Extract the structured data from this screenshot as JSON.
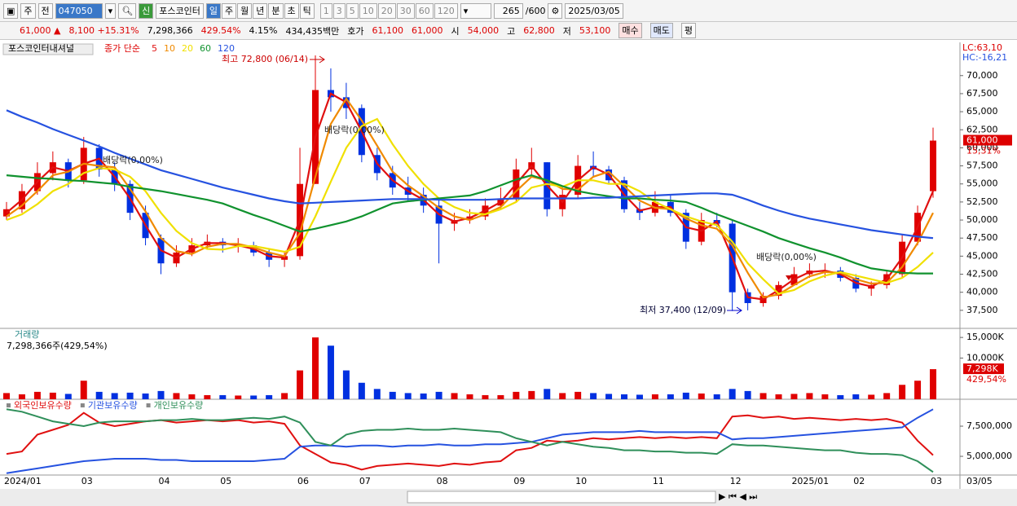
{
  "toolbar": {
    "period": "주",
    "prev": "전",
    "code": "047050",
    "badge": "신",
    "name": "포스코인터",
    "intervals": [
      "일",
      "주",
      "월",
      "년",
      "분",
      "초",
      "틱"
    ],
    "counts": [
      "1",
      "3",
      "5",
      "10",
      "20",
      "30",
      "60",
      "120"
    ],
    "count": "265",
    "count_max": "/600",
    "date": "2025/03/05"
  },
  "quote_bar": {
    "price": "61,000 ▲",
    "change": "8,100 +15.31%",
    "volume": "7,298,366",
    "volume_ratio": "429.54%",
    "turnover": "4.15%",
    "amount": "434,435백만",
    "ask_label": "호가",
    "ask": "61,100",
    "bid": "61,000",
    "open_label": "시",
    "open": "54,000",
    "high_label": "고",
    "high": "62,800",
    "low_label": "저",
    "low": "53,100",
    "buy": "매수",
    "sell": "매도",
    "avg": "평"
  },
  "chart_data": [
    {
      "type": "candlestick",
      "legend_title": "포스코인터내셔널",
      "legend_label": "종가 단순",
      "up_color": "#e00000",
      "down_color": "#0030e0",
      "categories": [
        "2024/01",
        null,
        null,
        null,
        null,
        "03",
        null,
        null,
        null,
        null,
        "04",
        null,
        null,
        null,
        "05",
        null,
        null,
        null,
        null,
        "06",
        null,
        null,
        null,
        "07",
        null,
        null,
        null,
        null,
        "08",
        null,
        null,
        null,
        null,
        "09",
        null,
        null,
        null,
        "10",
        null,
        null,
        null,
        null,
        "11",
        null,
        null,
        null,
        null,
        "12",
        null,
        null,
        null,
        "2025/01",
        null,
        null,
        null,
        "02",
        null,
        null,
        null,
        null,
        "03"
      ],
      "open": [
        50500,
        51500,
        54000,
        56500,
        58000,
        55500,
        60000,
        57000,
        55000,
        51000,
        47500,
        44000,
        45500,
        46500,
        47000,
        46500,
        46500,
        45500,
        44500,
        45000,
        55000,
        68000,
        67000,
        65500,
        59000,
        56500,
        54500,
        53500,
        52000,
        49500,
        50000,
        50500,
        52000,
        53000,
        57000,
        58000,
        51500,
        53500,
        57500,
        57000,
        55500,
        51500,
        51000,
        52500,
        51000,
        47000,
        50000,
        49500,
        40000,
        38500,
        39500,
        41000,
        42500,
        43000,
        43000,
        42000,
        40500,
        41000,
        42500,
        47000,
        54000
      ],
      "high": [
        52500,
        55000,
        58000,
        59500,
        58500,
        61500,
        60500,
        58000,
        55500,
        52000,
        48000,
        46500,
        47500,
        48000,
        47500,
        47500,
        47000,
        46000,
        45500,
        60000,
        72800,
        71000,
        69000,
        66000,
        60000,
        57500,
        56000,
        54500,
        53000,
        51000,
        51500,
        53000,
        54500,
        58500,
        60000,
        58000,
        54500,
        59000,
        59500,
        57500,
        56000,
        52500,
        54000,
        53500,
        51500,
        51000,
        51000,
        50000,
        40500,
        40000,
        41500,
        43500,
        44000,
        44000,
        43500,
        42500,
        41500,
        43000,
        48000,
        52000,
        62800
      ],
      "low": [
        50000,
        51000,
        53500,
        55500,
        54500,
        55000,
        56000,
        54000,
        50000,
        46500,
        42500,
        43500,
        45000,
        46000,
        45500,
        45500,
        45000,
        43500,
        43500,
        44500,
        55000,
        65000,
        64000,
        58000,
        55500,
        53500,
        52500,
        51000,
        44000,
        48500,
        49500,
        50000,
        51500,
        52500,
        56000,
        50500,
        50500,
        53000,
        56000,
        55000,
        51000,
        50000,
        50500,
        50500,
        46000,
        46500,
        49000,
        37400,
        37500,
        38000,
        39000,
        41000,
        42000,
        42000,
        41500,
        40000,
        39500,
        40500,
        42000,
        46500,
        53100
      ],
      "close": [
        51500,
        54000,
        56500,
        58000,
        55500,
        60000,
        57000,
        55000,
        51000,
        47500,
        44000,
        45500,
        46500,
        47000,
        46500,
        46500,
        45500,
        44500,
        45000,
        55000,
        68000,
        67000,
        65500,
        59000,
        56500,
        54500,
        53500,
        52000,
        49500,
        50000,
        50500,
        52000,
        53000,
        57000,
        58000,
        51500,
        53500,
        57500,
        57000,
        55500,
        51500,
        51000,
        52500,
        51000,
        47000,
        50000,
        49500,
        40000,
        38500,
        39500,
        41000,
        42500,
        43000,
        43000,
        42000,
        40500,
        41000,
        42500,
        47000,
        51000,
        61000
      ],
      "series": [
        {
          "name": "5",
          "color": "#e01010",
          "values": [
            51000,
            52800,
            55300,
            57300,
            56800,
            57800,
            58500,
            56000,
            53000,
            49300,
            45800,
            44800,
            46000,
            46800,
            46800,
            46500,
            46000,
            45000,
            44800,
            50000,
            61500,
            67500,
            66300,
            62300,
            57800,
            55500,
            54000,
            52800,
            50800,
            49800,
            50300,
            51300,
            52500,
            55000,
            57500,
            54800,
            52500,
            55500,
            57300,
            56300,
            53500,
            51300,
            51800,
            51800,
            49000,
            48500,
            49800,
            44800,
            39300,
            39000,
            40300,
            41800,
            42800,
            43000,
            42500,
            41300,
            40800,
            41800,
            44800,
            49000,
            54000
          ]
        },
        {
          "name": "10",
          "color": "#f08a00",
          "values": [
            50500,
            52000,
            54000,
            56200,
            56700,
            57800,
            57500,
            57300,
            54300,
            51200,
            47500,
            45700,
            45300,
            46300,
            46700,
            46700,
            46200,
            45500,
            45000,
            48200,
            56000,
            63300,
            66800,
            63800,
            60300,
            56700,
            54800,
            53300,
            51700,
            50500,
            50000,
            50800,
            51800,
            54000,
            56000,
            55500,
            54300,
            54200,
            56000,
            56700,
            54700,
            52700,
            51700,
            51500,
            50200,
            49300,
            48800,
            46500,
            42700,
            39300,
            39700,
            41000,
            42200,
            42800,
            42700,
            41800,
            41200,
            41300,
            43500,
            46800,
            51000
          ]
        },
        {
          "name": "20",
          "color": "#f0e000",
          "values": [
            50000,
            50800,
            52200,
            54000,
            55000,
            56500,
            57200,
            57000,
            56000,
            54000,
            51000,
            48500,
            46800,
            46000,
            45900,
            46400,
            46400,
            46000,
            45600,
            46300,
            50500,
            55300,
            60000,
            63000,
            64000,
            60500,
            57500,
            55000,
            53000,
            51800,
            51000,
            50800,
            51500,
            52500,
            54500,
            55000,
            54600,
            55500,
            55500,
            55000,
            55000,
            54000,
            52500,
            51500,
            50500,
            49800,
            49300,
            47000,
            44000,
            41800,
            39800,
            40300,
            41500,
            42300,
            42800,
            42300,
            41800,
            41300,
            42000,
            43500,
            45500
          ]
        },
        {
          "name": "60",
          "color": "#10922e",
          "values": [
            56200,
            56000,
            55800,
            55700,
            55500,
            55400,
            55200,
            55000,
            54600,
            54300,
            54000,
            53600,
            53200,
            52800,
            52300,
            51500,
            50700,
            50000,
            49200,
            48400,
            48800,
            49300,
            49800,
            50500,
            51400,
            52300,
            52600,
            52800,
            53000,
            53200,
            53400,
            54000,
            54800,
            55600,
            56200,
            55500,
            54700,
            54000,
            53600,
            53300,
            53000,
            53000,
            52800,
            52700,
            52500,
            51700,
            50800,
            50000,
            49200,
            48400,
            47500,
            46800,
            46100,
            45500,
            44800,
            44000,
            43300,
            43000,
            42700,
            42600,
            42600
          ]
        },
        {
          "name": "120",
          "color": "#2652e0",
          "values": [
            65200,
            64300,
            63500,
            62600,
            61800,
            61000,
            60200,
            59300,
            58500,
            57700,
            56900,
            56300,
            55700,
            55100,
            54500,
            54000,
            53500,
            53000,
            52600,
            52300,
            52400,
            52500,
            52600,
            52700,
            52800,
            52900,
            52900,
            52900,
            52800,
            52800,
            52800,
            52800,
            52900,
            53000,
            53000,
            53000,
            53000,
            53000,
            53100,
            53100,
            53200,
            53300,
            53400,
            53500,
            53600,
            53700,
            53700,
            53500,
            52800,
            52000,
            51300,
            50700,
            50200,
            49800,
            49400,
            49000,
            48600,
            48300,
            48000,
            47700,
            47500
          ]
        }
      ],
      "annotations": [
        "최고 72,800 (06/14)",
        "최저 37,400 (12/09)",
        "배당락(0,00%)",
        "배당락(0,00%)",
        "배당락(0,00%)"
      ],
      "lc_label": "LC:63,10",
      "hc_label": "HC:-16,21",
      "last_label": "61,000",
      "last_change_label": "15,31%",
      "ylim": [
        35000,
        74600
      ],
      "yticks": [
        {
          "value": 37500,
          "label": "37,500"
        },
        {
          "value": 40000,
          "label": "40,000"
        },
        {
          "value": 42500,
          "label": "42,500"
        },
        {
          "value": 45000,
          "label": "45,000"
        },
        {
          "value": 47500,
          "label": "47,500"
        },
        {
          "value": 50000,
          "label": "50,000"
        },
        {
          "value": 52500,
          "label": "52,500"
        },
        {
          "value": 55000,
          "label": "55,000"
        },
        {
          "value": 57500,
          "label": "57,500"
        },
        {
          "value": 60000,
          "label": "60,000"
        },
        {
          "value": 62500,
          "label": "62,500"
        },
        {
          "value": 65000,
          "label": "65,000"
        },
        {
          "value": 67500,
          "label": "67,500"
        },
        {
          "value": 70000,
          "label": "70,000"
        }
      ],
      "date_label": "03/05"
    },
    {
      "type": "bar",
      "title": "거래량",
      "subtitle": "7,298,366주(429,54%)",
      "last_label": "7,298K",
      "last_change_label": "429,54%",
      "values": [
        1500,
        1200,
        1800,
        1600,
        1300,
        4500,
        1800,
        1500,
        1600,
        1400,
        2000,
        1500,
        1200,
        1000,
        1000,
        900,
        900,
        1000,
        1500,
        7000,
        15000,
        13000,
        7000,
        4000,
        2500,
        1800,
        1500,
        1400,
        1800,
        1500,
        1200,
        1000,
        1000,
        1800,
        2000,
        2500,
        1500,
        1800,
        1500,
        1300,
        1200,
        1100,
        1200,
        1200,
        1600,
        1400,
        1200,
        2500,
        2000,
        1500,
        1200,
        1300,
        1500,
        1200,
        1000,
        1200,
        1100,
        1500,
        3500,
        4500,
        7298
      ],
      "ylim": [
        0,
        17200
      ],
      "yticks": [
        {
          "value": 10000,
          "label": "10,000K"
        },
        {
          "value": 15000,
          "label": "15,000K"
        }
      ]
    },
    {
      "type": "line",
      "series": [
        {
          "name": "외국인보유수량",
          "color": "#e01010",
          "values": [
            5200000,
            5400000,
            6800000,
            7200000,
            7600000,
            8600000,
            7800000,
            7500000,
            7700000,
            7900000,
            8000000,
            7800000,
            7900000,
            8000000,
            7900000,
            8000000,
            7800000,
            7900000,
            7700000,
            5900000,
            5200000,
            4500000,
            4300000,
            3900000,
            4200000,
            4300000,
            4400000,
            4300000,
            4200000,
            4400000,
            4300000,
            4500000,
            4600000,
            5500000,
            5700000,
            6300000,
            6200000,
            6300000,
            6500000,
            6400000,
            6500000,
            6600000,
            6500000,
            6600000,
            6500000,
            6600000,
            6500000,
            8300000,
            8400000,
            8200000,
            8300000,
            8100000,
            8200000,
            8100000,
            8000000,
            8100000,
            8000000,
            8100000,
            7800000,
            6300000,
            5100000
          ]
        },
        {
          "name": "기관보유수량",
          "color": "#2652e0",
          "values": [
            3600000,
            3800000,
            4000000,
            4200000,
            4400000,
            4600000,
            4700000,
            4800000,
            4800000,
            4800000,
            4700000,
            4700000,
            4600000,
            4600000,
            4600000,
            4600000,
            4600000,
            4700000,
            4800000,
            5800000,
            5900000,
            5900000,
            5800000,
            5900000,
            5900000,
            5800000,
            5900000,
            5900000,
            6000000,
            5900000,
            5900000,
            6000000,
            6000000,
            6100000,
            6200000,
            6500000,
            6800000,
            6900000,
            7000000,
            7000000,
            7000000,
            7100000,
            7000000,
            7000000,
            7000000,
            7000000,
            7000000,
            6400000,
            6500000,
            6500000,
            6600000,
            6700000,
            6800000,
            6900000,
            7000000,
            7100000,
            7200000,
            7300000,
            7400000,
            8200000,
            8900000
          ]
        },
        {
          "name": "개인보유수량",
          "color": "#2f8f5a",
          "values": [
            8900000,
            8700000,
            8300000,
            7900000,
            7700000,
            7500000,
            7800000,
            7900000,
            7900000,
            7900000,
            8000000,
            8000000,
            8100000,
            8000000,
            8000000,
            8100000,
            8200000,
            8100000,
            8300000,
            7800000,
            6200000,
            5900000,
            6800000,
            7100000,
            7200000,
            7200000,
            7300000,
            7200000,
            7200000,
            7300000,
            7200000,
            7100000,
            7000000,
            6500000,
            6200000,
            5900000,
            6200000,
            6000000,
            5800000,
            5700000,
            5500000,
            5500000,
            5400000,
            5400000,
            5300000,
            5300000,
            5200000,
            6000000,
            5900000,
            5900000,
            5800000,
            5700000,
            5600000,
            5500000,
            5500000,
            5300000,
            5200000,
            5200000,
            5100000,
            4600000,
            3700000
          ]
        }
      ],
      "ylim": [
        3450000,
        9730000
      ],
      "yticks": [
        {
          "value": 5000000,
          "label": "5,000,000"
        },
        {
          "value": 7500000,
          "label": "7,500,000"
        }
      ]
    }
  ]
}
